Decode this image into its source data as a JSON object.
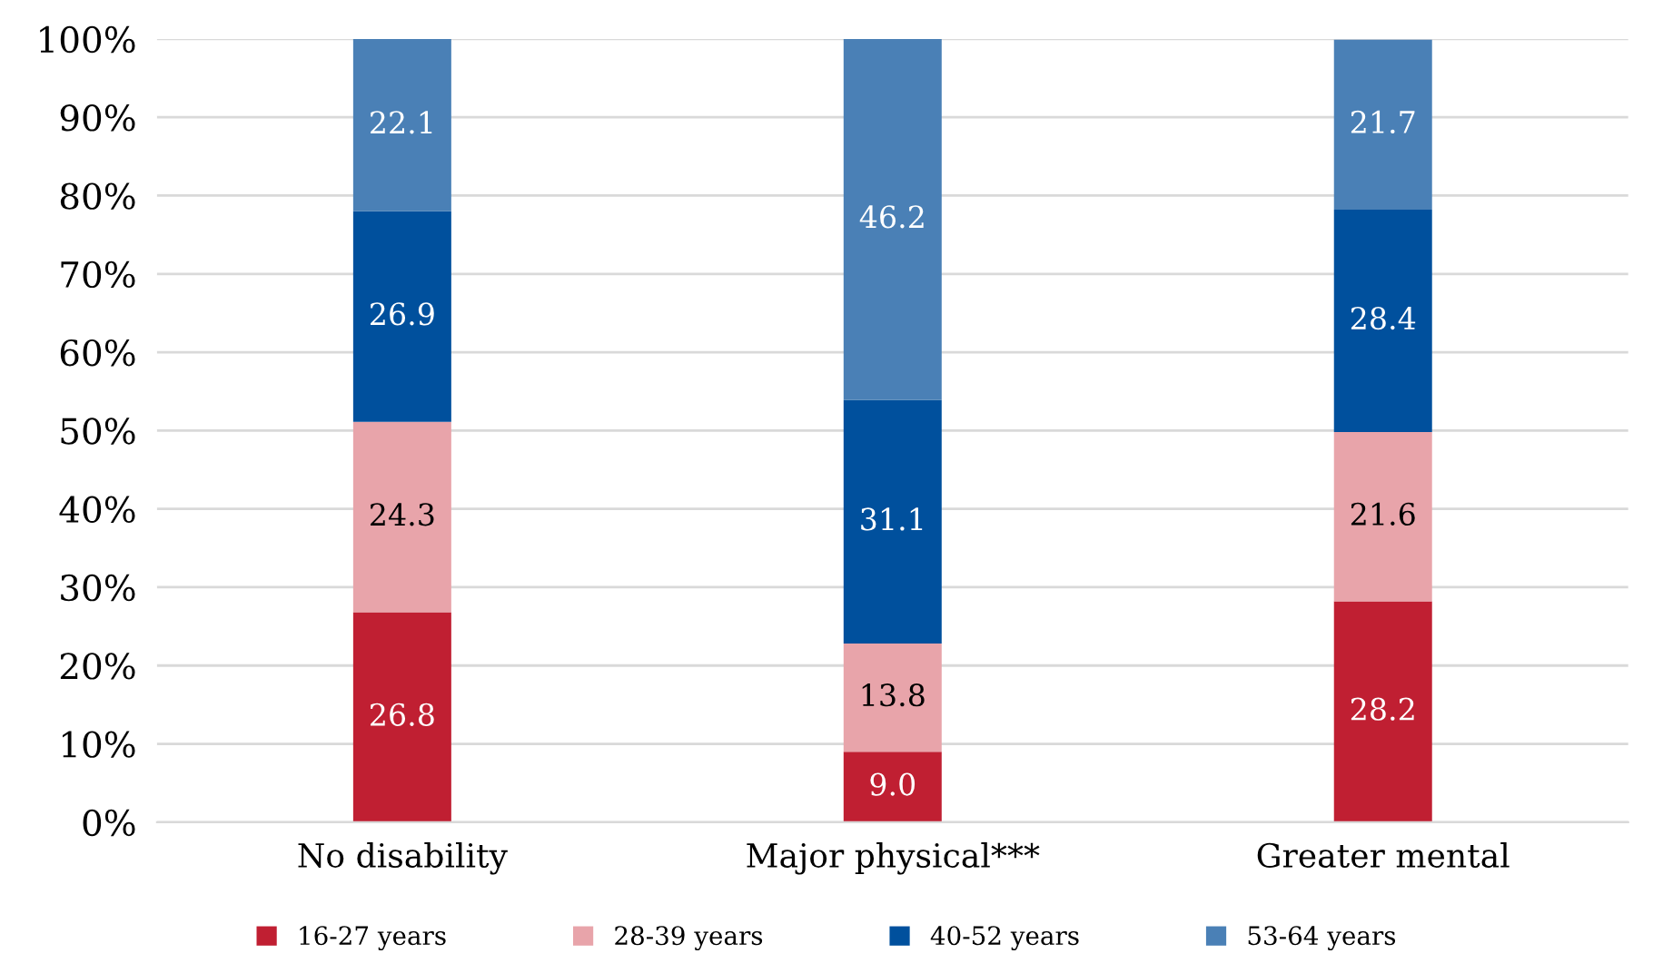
{
  "chart_data": {
    "type": "bar",
    "stacked": true,
    "categories": [
      "No disability",
      "Major physical***",
      "Greater mental"
    ],
    "series": [
      {
        "name": "16-27 years",
        "color": "#c01f32",
        "values": [
          26.8,
          9.0,
          28.2
        ]
      },
      {
        "name": "28-39 years",
        "color": "#e8a4aa",
        "values": [
          24.3,
          13.8,
          21.6
        ]
      },
      {
        "name": "40-52 years",
        "color": "#00509d",
        "values": [
          26.9,
          31.1,
          28.4
        ]
      },
      {
        "name": "53-64 years",
        "color": "#4a80b6",
        "values": [
          22.1,
          46.2,
          21.7
        ]
      }
    ],
    "value_labels": [
      [
        "26.8",
        "9.0",
        "28.2"
      ],
      [
        "24.3",
        "13.8",
        "21.6"
      ],
      [
        "26.9",
        "31.1",
        "28.4"
      ],
      [
        "22.1",
        "46.2",
        "21.7"
      ]
    ],
    "ylim": [
      0,
      100
    ],
    "yticks": [
      {
        "value": 0,
        "label": "0%"
      },
      {
        "value": 10,
        "label": "10%"
      },
      {
        "value": 20,
        "label": "20%"
      },
      {
        "value": 30,
        "label": "30%"
      },
      {
        "value": 40,
        "label": "40%"
      },
      {
        "value": 50,
        "label": "50%"
      },
      {
        "value": 60,
        "label": "60%"
      },
      {
        "value": 70,
        "label": "70%"
      },
      {
        "value": 80,
        "label": "80%"
      },
      {
        "value": 90,
        "label": "90%"
      },
      {
        "value": 100,
        "label": "100%"
      }
    ],
    "grid": "y",
    "legend": "bottom"
  }
}
